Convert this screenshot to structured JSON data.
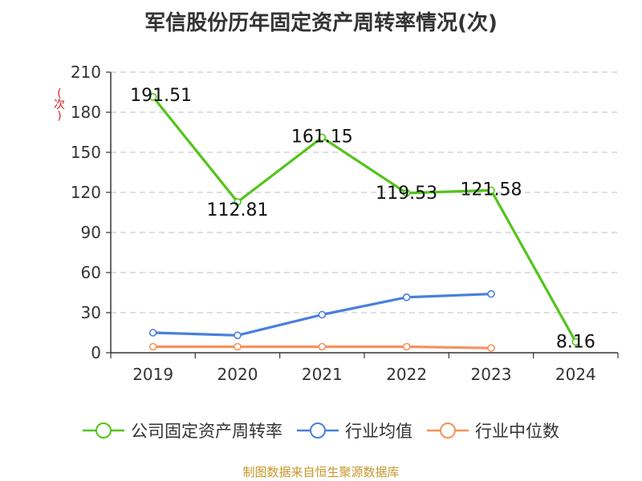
{
  "chart_data": {
    "type": "line",
    "title": "军信股份历年固定资产周转率情况(次)",
    "ylabel": "(次)",
    "xlabel": "",
    "categories": [
      "2019",
      "2020",
      "2021",
      "2022",
      "2023",
      "2024"
    ],
    "ylim": [
      0,
      210
    ],
    "yticks": [
      0,
      30,
      60,
      90,
      120,
      150,
      180,
      210
    ],
    "grid": true,
    "legend_position": "bottom",
    "series": [
      {
        "name": "公司固定资产周转率",
        "color": "#52c41a",
        "values": [
          191.51,
          112.81,
          161.15,
          119.53,
          121.58,
          8.16
        ],
        "labels": [
          "191.51",
          "112.81",
          "161.15",
          "119.53",
          "121.58",
          "8.16"
        ]
      },
      {
        "name": "行业均值",
        "color": "#4a7fdc",
        "values": [
          15,
          13,
          28.5,
          41.5,
          44,
          null
        ]
      },
      {
        "name": "行业中位数",
        "color": "#f5925c",
        "values": [
          4.5,
          4.5,
          4.5,
          4.5,
          3.5,
          null
        ]
      }
    ]
  },
  "footer": "制图数据来自恒生聚源数据库"
}
